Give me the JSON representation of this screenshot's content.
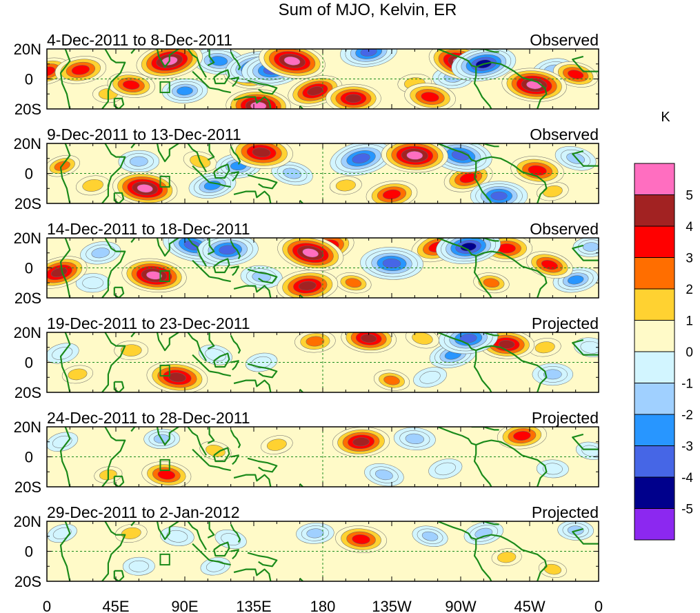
{
  "chart_data": {
    "type": "heatmap",
    "title": "Sum of MJO, Kelvin, ER",
    "colorbar": {
      "unit": "K",
      "tick_labels": [
        "5",
        "4",
        "3",
        "2",
        "1",
        "0",
        "-1",
        "-2",
        "-3",
        "-4",
        "-5"
      ],
      "colors": [
        "#ff6ec0",
        "#a22222",
        "#ff0000",
        "#ff6e00",
        "#ffd231",
        "#fffac8",
        "#d2f5ff",
        "#a0d0ff",
        "#2896ff",
        "#4666e6",
        "#00008c",
        "#8c28f0"
      ]
    },
    "x_axis": {
      "tick_labels": [
        "0",
        "45E",
        "90E",
        "135E",
        "180",
        "135W",
        "90W",
        "45W",
        "0"
      ],
      "range_deg_east": [
        0,
        360
      ]
    },
    "y_axis": {
      "tick_labels": [
        "20N",
        "0",
        "20S"
      ],
      "range_deg": [
        -20,
        20
      ]
    },
    "panels": [
      {
        "date_range": "4-Dec-2011 to 8-Dec-2011",
        "status": "Observed",
        "anomalies": [
          {
            "lon": 0,
            "lat": 5,
            "value": 3.2
          },
          {
            "lon": 22,
            "lat": 6,
            "value": 3.6
          },
          {
            "lon": 40,
            "lat": -10,
            "value": 1.5
          },
          {
            "lon": 55,
            "lat": -4,
            "value": 3.2
          },
          {
            "lon": 75,
            "lat": 10,
            "value": 1.8
          },
          {
            "lon": 80,
            "lat": 12,
            "value": 5.2
          },
          {
            "lon": 90,
            "lat": -8,
            "value": -3.0
          },
          {
            "lon": 112,
            "lat": 12,
            "value": -3.6
          },
          {
            "lon": 130,
            "lat": 2,
            "value": 3.0
          },
          {
            "lon": 135,
            "lat": 8,
            "value": -4.2
          },
          {
            "lon": 147,
            "lat": 6,
            "value": -4.6
          },
          {
            "lon": 138,
            "lat": -18,
            "value": 5.0
          },
          {
            "lon": 160,
            "lat": 12,
            "value": 5.2
          },
          {
            "lon": 175,
            "lat": -8,
            "value": 4.0
          },
          {
            "lon": 210,
            "lat": 18,
            "value": -4.2
          },
          {
            "lon": 200,
            "lat": -13,
            "value": 4.0
          },
          {
            "lon": 250,
            "lat": -12,
            "value": 3.6
          },
          {
            "lon": 270,
            "lat": 11,
            "value": 5.0
          },
          {
            "lon": 285,
            "lat": 10,
            "value": -5.0
          },
          {
            "lon": 265,
            "lat": 1,
            "value": -2.5
          },
          {
            "lon": 318,
            "lat": -4,
            "value": 5.0
          },
          {
            "lon": 345,
            "lat": 3,
            "value": 3.0
          },
          {
            "lon": 330,
            "lat": 6,
            "value": -2.5
          },
          {
            "lon": 240,
            "lat": -3,
            "value": 1.8
          }
        ]
      },
      {
        "date_range": "9-Dec-2011 to 13-Dec-2011",
        "status": "Observed",
        "anomalies": [
          {
            "lon": 10,
            "lat": 5,
            "value": 2.0
          },
          {
            "lon": 30,
            "lat": -8,
            "value": 1.8
          },
          {
            "lon": 60,
            "lat": 8,
            "value": -2.5
          },
          {
            "lon": 64,
            "lat": -10,
            "value": 5.0
          },
          {
            "lon": 100,
            "lat": 8,
            "value": 1.8
          },
          {
            "lon": 108,
            "lat": -8,
            "value": -3.2
          },
          {
            "lon": 125,
            "lat": 5,
            "value": -3.0
          },
          {
            "lon": 140,
            "lat": 14,
            "value": 4.8
          },
          {
            "lon": 160,
            "lat": 0,
            "value": -2.6
          },
          {
            "lon": 205,
            "lat": 10,
            "value": -4.8
          },
          {
            "lon": 195,
            "lat": -8,
            "value": 1.6
          },
          {
            "lon": 240,
            "lat": 12,
            "value": 5.2
          },
          {
            "lon": 270,
            "lat": 12,
            "value": -4.8
          },
          {
            "lon": 275,
            "lat": -3,
            "value": 3.4
          },
          {
            "lon": 225,
            "lat": -14,
            "value": 3.6
          },
          {
            "lon": 295,
            "lat": -15,
            "value": -4.2
          },
          {
            "lon": 320,
            "lat": 2,
            "value": 3.8
          },
          {
            "lon": 345,
            "lat": 10,
            "value": -2.6
          },
          {
            "lon": 330,
            "lat": -12,
            "value": 1.6
          }
        ]
      },
      {
        "date_range": "14-Dec-2011 to 18-Dec-2011",
        "status": "Observed",
        "anomalies": [
          {
            "lon": 8,
            "lat": -3,
            "value": 4.2
          },
          {
            "lon": 35,
            "lat": 10,
            "value": -2.5
          },
          {
            "lon": 30,
            "lat": -10,
            "value": -1.8
          },
          {
            "lon": 70,
            "lat": -5,
            "value": 5.0
          },
          {
            "lon": 95,
            "lat": 15,
            "value": -4.5
          },
          {
            "lon": 110,
            "lat": 10,
            "value": -3.4
          },
          {
            "lon": 118,
            "lat": 12,
            "value": -4.6
          },
          {
            "lon": 140,
            "lat": -6,
            "value": -2.6
          },
          {
            "lon": 172,
            "lat": 10,
            "value": 5.2
          },
          {
            "lon": 182,
            "lat": 14,
            "value": 4.2
          },
          {
            "lon": 170,
            "lat": -12,
            "value": 4.6
          },
          {
            "lon": 225,
            "lat": 3,
            "value": -4.8
          },
          {
            "lon": 200,
            "lat": -10,
            "value": 2.0
          },
          {
            "lon": 255,
            "lat": 14,
            "value": 3.8
          },
          {
            "lon": 275,
            "lat": 14,
            "value": -5.0
          },
          {
            "lon": 300,
            "lat": 13,
            "value": 3.6
          },
          {
            "lon": 290,
            "lat": -10,
            "value": 2.0
          },
          {
            "lon": 328,
            "lat": 2,
            "value": 3.2
          },
          {
            "lon": 345,
            "lat": -8,
            "value": -3.0
          },
          {
            "lon": 355,
            "lat": 14,
            "value": -2.0
          }
        ]
      },
      {
        "date_range": "19-Dec-2011 to 23-Dec-2011",
        "status": "Projected",
        "anomalies": [
          {
            "lon": 10,
            "lat": 6,
            "value": -1.8
          },
          {
            "lon": 20,
            "lat": -8,
            "value": 1.5
          },
          {
            "lon": 55,
            "lat": 8,
            "value": 1.8
          },
          {
            "lon": 85,
            "lat": -10,
            "value": 4.6
          },
          {
            "lon": 110,
            "lat": 5,
            "value": -1.8
          },
          {
            "lon": 140,
            "lat": 0,
            "value": -1.6
          },
          {
            "lon": 175,
            "lat": 14,
            "value": 2.5
          },
          {
            "lon": 210,
            "lat": 16,
            "value": 4.0
          },
          {
            "lon": 245,
            "lat": 16,
            "value": 1.8
          },
          {
            "lon": 265,
            "lat": 5,
            "value": -3.2
          },
          {
            "lon": 275,
            "lat": 16,
            "value": -4.4
          },
          {
            "lon": 300,
            "lat": 12,
            "value": 4.0
          },
          {
            "lon": 225,
            "lat": -12,
            "value": 2.0
          },
          {
            "lon": 250,
            "lat": -10,
            "value": -1.8
          },
          {
            "lon": 325,
            "lat": 10,
            "value": 1.6
          },
          {
            "lon": 330,
            "lat": -8,
            "value": -2.5
          },
          {
            "lon": 355,
            "lat": 10,
            "value": -1.8
          }
        ]
      },
      {
        "date_range": "24-Dec-2011 to 28-Dec-2011",
        "status": "Projected",
        "anomalies": [
          {
            "lon": 10,
            "lat": 10,
            "value": -1.6
          },
          {
            "lon": 40,
            "lat": -12,
            "value": 1.2
          },
          {
            "lon": 75,
            "lat": 12,
            "value": -2.0
          },
          {
            "lon": 78,
            "lat": -12,
            "value": 3.4
          },
          {
            "lon": 110,
            "lat": 4,
            "value": 1.6
          },
          {
            "lon": 150,
            "lat": 8,
            "value": 1.6
          },
          {
            "lon": 205,
            "lat": 10,
            "value": 4.2
          },
          {
            "lon": 240,
            "lat": 12,
            "value": -2.6
          },
          {
            "lon": 220,
            "lat": -12,
            "value": -2.4
          },
          {
            "lon": 260,
            "lat": -8,
            "value": -1.8
          },
          {
            "lon": 310,
            "lat": 14,
            "value": 3.4
          },
          {
            "lon": 330,
            "lat": -8,
            "value": -1.6
          },
          {
            "lon": 355,
            "lat": 4,
            "value": -1.4
          }
        ]
      },
      {
        "date_range": "29-Dec-2011 to 2-Jan-2012",
        "status": "Projected",
        "anomalies": [
          {
            "lon": 10,
            "lat": 12,
            "value": -1.4
          },
          {
            "lon": 55,
            "lat": 12,
            "value": 1.6
          },
          {
            "lon": 60,
            "lat": -10,
            "value": -1.6
          },
          {
            "lon": 85,
            "lat": 10,
            "value": -1.8
          },
          {
            "lon": 120,
            "lat": 8,
            "value": -1.6
          },
          {
            "lon": 110,
            "lat": -10,
            "value": -1.4
          },
          {
            "lon": 175,
            "lat": 12,
            "value": -2.2
          },
          {
            "lon": 205,
            "lat": 8,
            "value": 3.6
          },
          {
            "lon": 250,
            "lat": 10,
            "value": -2.0
          },
          {
            "lon": 285,
            "lat": 12,
            "value": -2.4
          },
          {
            "lon": 300,
            "lat": -4,
            "value": 1.4
          },
          {
            "lon": 345,
            "lat": 14,
            "value": -2.0
          },
          {
            "lon": 330,
            "lat": -12,
            "value": 1.2
          }
        ]
      }
    ]
  }
}
